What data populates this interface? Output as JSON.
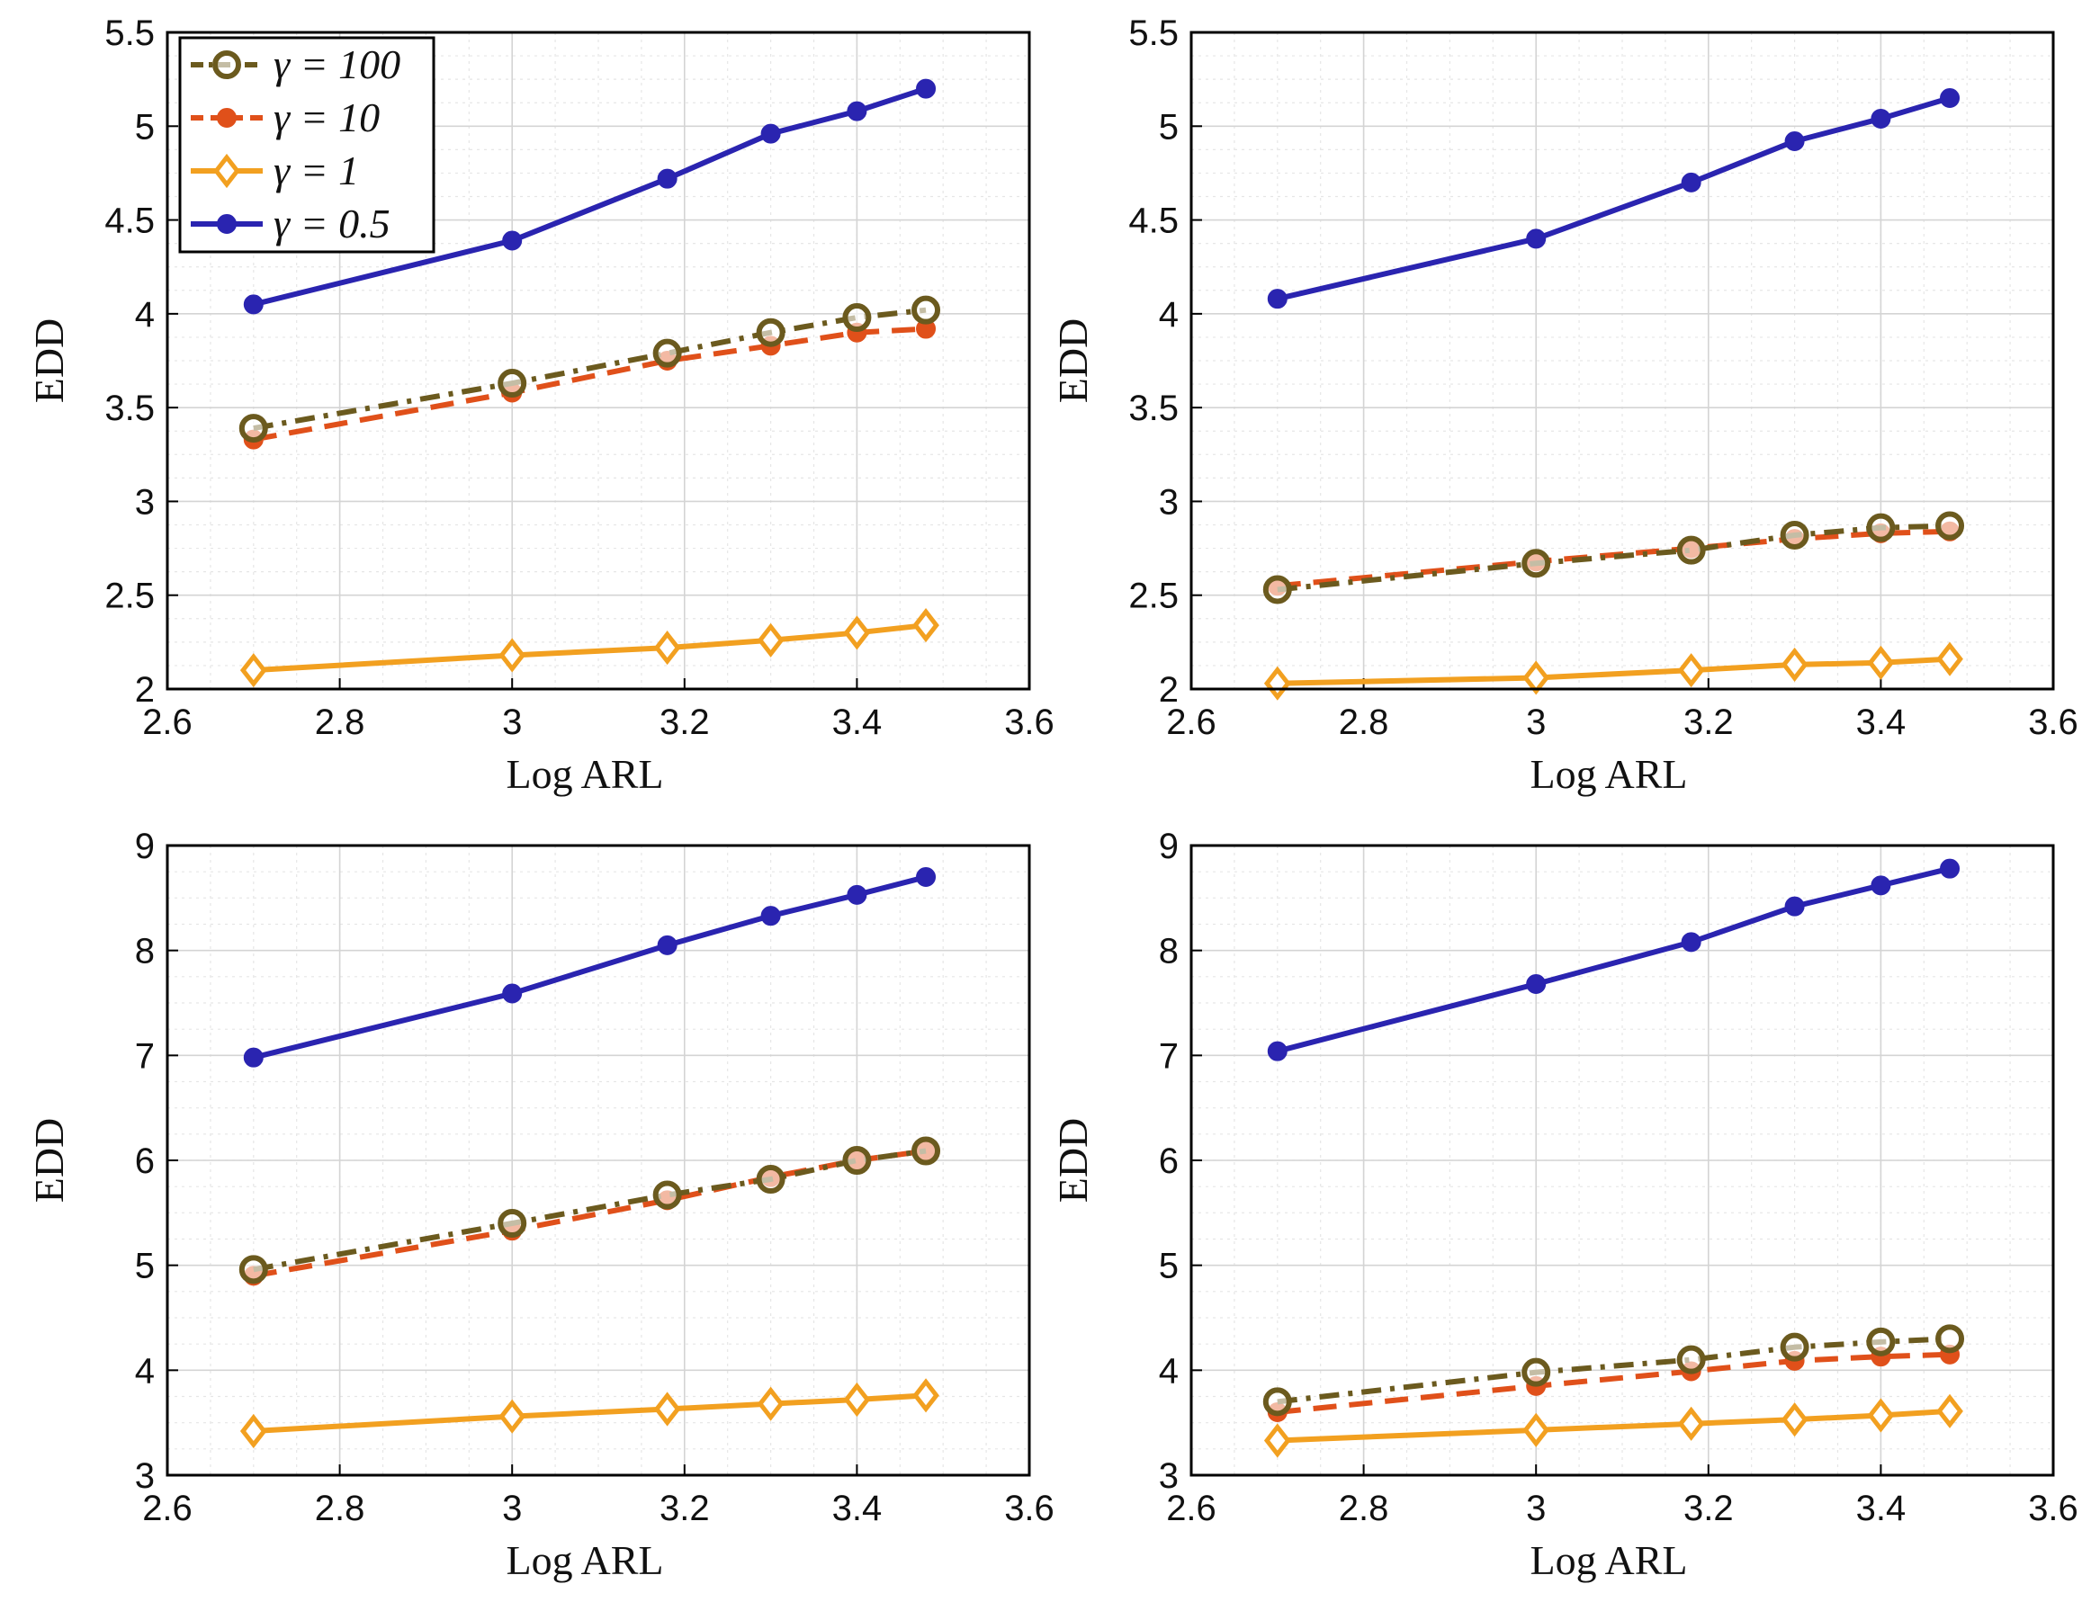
{
  "styles": {
    "g100": {
      "color": "#6b5a1e",
      "dash": "22 10 5 10",
      "marker": "circle-open"
    },
    "g10": {
      "color": "#e0501a",
      "dash": "26 14",
      "marker": "circle-filled"
    },
    "g1": {
      "color": "#f2a020",
      "dash": "",
      "marker": "diamond-open"
    },
    "g05": {
      "color": "#2a24b0",
      "dash": "",
      "marker": "circle-filled"
    }
  },
  "legend": {
    "items": [
      {
        "key": "g100",
        "label": "γ = 100"
      },
      {
        "key": "g10",
        "label": "γ = 10"
      },
      {
        "key": "g1",
        "label": "γ = 1"
      },
      {
        "key": "g05",
        "label": "γ = 0.5"
      }
    ]
  },
  "chart_data": [
    {
      "type": "line",
      "position": "top-left",
      "xlabel": "Log ARL",
      "ylabel": "EDD",
      "xlim": [
        2.6,
        3.6
      ],
      "ylim": [
        2,
        5.5
      ],
      "xticks": [
        2.6,
        2.8,
        3,
        3.2,
        3.4,
        3.6
      ],
      "xtick_labels": [
        "2.6",
        "2.8",
        "3",
        "3.2",
        "3.4",
        "3.6"
      ],
      "yticks": [
        2,
        2.5,
        3,
        3.5,
        4,
        4.5,
        5,
        5.5
      ],
      "ytick_labels": [
        "2",
        "2.5",
        "3",
        "3.5",
        "4",
        "4.5",
        "5",
        "5.5"
      ],
      "grid": true,
      "show_legend": true,
      "legend_location": "top-left",
      "x": [
        2.7,
        3.0,
        3.18,
        3.3,
        3.4,
        3.48
      ],
      "series": [
        {
          "key": "g100",
          "name": "γ = 100",
          "values": [
            3.39,
            3.63,
            3.79,
            3.9,
            3.98,
            4.02
          ]
        },
        {
          "key": "g10",
          "name": "γ = 10",
          "values": [
            3.33,
            3.58,
            3.75,
            3.83,
            3.9,
            3.92
          ]
        },
        {
          "key": "g1",
          "name": "γ = 1",
          "values": [
            2.1,
            2.18,
            2.22,
            2.26,
            2.3,
            2.34
          ]
        },
        {
          "key": "g05",
          "name": "γ = 0.5",
          "values": [
            4.05,
            4.39,
            4.72,
            4.96,
            5.08,
            5.2
          ]
        }
      ]
    },
    {
      "type": "line",
      "position": "top-right",
      "xlabel": "Log ARL",
      "ylabel": "EDD",
      "xlim": [
        2.6,
        3.6
      ],
      "ylim": [
        2,
        5.5
      ],
      "xticks": [
        2.6,
        2.8,
        3,
        3.2,
        3.4,
        3.6
      ],
      "xtick_labels": [
        "2.6",
        "2.8",
        "3",
        "3.2",
        "3.4",
        "3.6"
      ],
      "yticks": [
        2,
        2.5,
        3,
        3.5,
        4,
        4.5,
        5,
        5.5
      ],
      "ytick_labels": [
        "2",
        "2.5",
        "3",
        "3.5",
        "4",
        "4.5",
        "5",
        "5.5"
      ],
      "grid": true,
      "show_legend": false,
      "x": [
        2.7,
        3.0,
        3.18,
        3.3,
        3.4,
        3.48
      ],
      "series": [
        {
          "key": "g100",
          "name": "γ = 100",
          "values": [
            2.53,
            2.67,
            2.74,
            2.82,
            2.86,
            2.87
          ]
        },
        {
          "key": "g10",
          "name": "γ = 10",
          "values": [
            2.55,
            2.68,
            2.75,
            2.8,
            2.83,
            2.84
          ]
        },
        {
          "key": "g1",
          "name": "γ = 1",
          "values": [
            2.03,
            2.06,
            2.1,
            2.13,
            2.14,
            2.16
          ]
        },
        {
          "key": "g05",
          "name": "γ = 0.5",
          "values": [
            4.08,
            4.4,
            4.7,
            4.92,
            5.04,
            5.15
          ]
        }
      ]
    },
    {
      "type": "line",
      "position": "bottom-left",
      "xlabel": "Log ARL",
      "ylabel": "EDD",
      "xlim": [
        2.6,
        3.6
      ],
      "ylim": [
        3,
        9
      ],
      "xticks": [
        2.6,
        2.8,
        3,
        3.2,
        3.4,
        3.6
      ],
      "xtick_labels": [
        "2.6",
        "2.8",
        "3",
        "3.2",
        "3.4",
        "3.6"
      ],
      "yticks": [
        3,
        4,
        5,
        6,
        7,
        8,
        9
      ],
      "ytick_labels": [
        "3",
        "4",
        "5",
        "6",
        "7",
        "8",
        "9"
      ],
      "grid": true,
      "show_legend": false,
      "x": [
        2.7,
        3.0,
        3.18,
        3.3,
        3.4,
        3.48
      ],
      "series": [
        {
          "key": "g100",
          "name": "γ = 100",
          "values": [
            4.96,
            5.4,
            5.67,
            5.82,
            6.0,
            6.09
          ]
        },
        {
          "key": "g10",
          "name": "γ = 10",
          "values": [
            4.9,
            5.33,
            5.62,
            5.84,
            6.0,
            6.09
          ]
        },
        {
          "key": "g1",
          "name": "γ = 1",
          "values": [
            3.42,
            3.56,
            3.63,
            3.68,
            3.72,
            3.76
          ]
        },
        {
          "key": "g05",
          "name": "γ = 0.5",
          "values": [
            6.98,
            7.59,
            8.05,
            8.33,
            8.53,
            8.7
          ]
        }
      ]
    },
    {
      "type": "line",
      "position": "bottom-right",
      "xlabel": "Log ARL",
      "ylabel": "EDD",
      "xlim": [
        2.6,
        3.6
      ],
      "ylim": [
        3,
        9
      ],
      "xticks": [
        2.6,
        2.8,
        3,
        3.2,
        3.4,
        3.6
      ],
      "xtick_labels": [
        "2.6",
        "2.8",
        "3",
        "3.2",
        "3.4",
        "3.6"
      ],
      "yticks": [
        3,
        4,
        5,
        6,
        7,
        8,
        9
      ],
      "ytick_labels": [
        "3",
        "4",
        "5",
        "6",
        "7",
        "8",
        "9"
      ],
      "grid": true,
      "show_legend": false,
      "x": [
        2.7,
        3.0,
        3.18,
        3.3,
        3.4,
        3.48
      ],
      "series": [
        {
          "key": "g100",
          "name": "γ = 100",
          "values": [
            3.7,
            3.98,
            4.1,
            4.22,
            4.27,
            4.3
          ]
        },
        {
          "key": "g10",
          "name": "γ = 10",
          "values": [
            3.6,
            3.85,
            3.99,
            4.09,
            4.13,
            4.15
          ]
        },
        {
          "key": "g1",
          "name": "γ = 1",
          "values": [
            3.33,
            3.43,
            3.49,
            3.53,
            3.57,
            3.61
          ]
        },
        {
          "key": "g05",
          "name": "γ = 0.5",
          "values": [
            7.04,
            7.68,
            8.08,
            8.42,
            8.62,
            8.78
          ]
        }
      ]
    }
  ]
}
